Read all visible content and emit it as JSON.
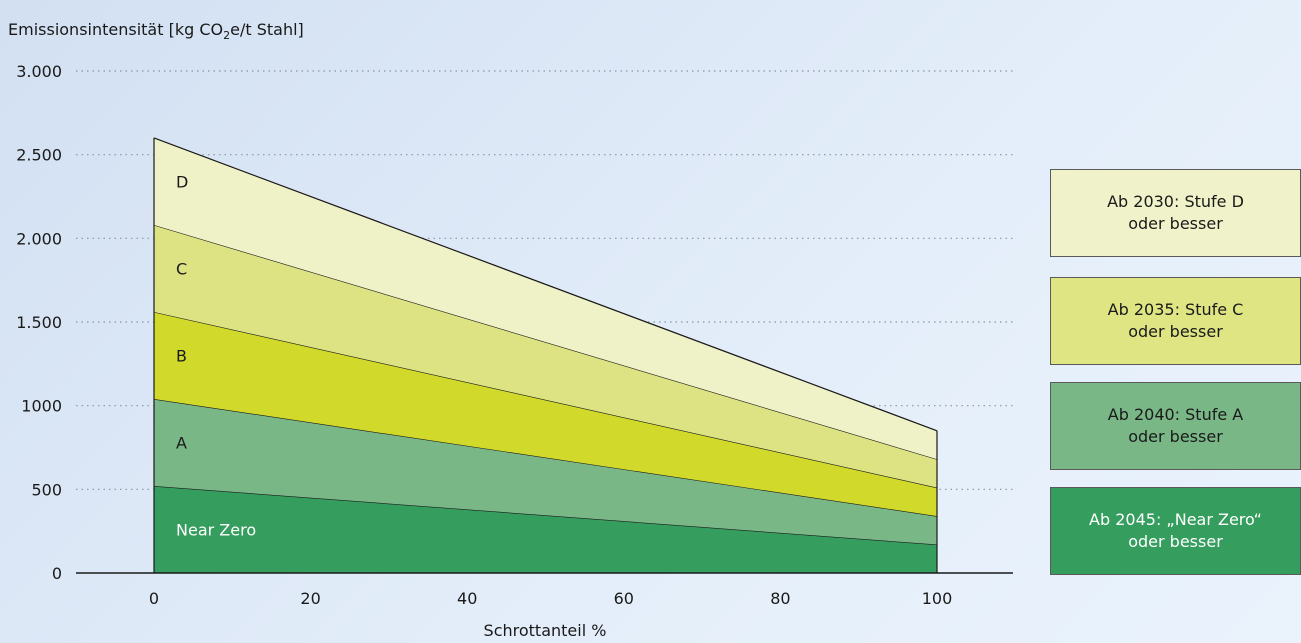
{
  "chart_data": {
    "type": "area",
    "title": "",
    "ylabel_prefix": "Emissionsintensität [kg CO",
    "ylabel_sub": "2",
    "ylabel_suffix": "e/t Stahl]",
    "xlabel": "Schrottanteil %",
    "xlim": [
      -10,
      110
    ],
    "ylim": [
      0,
      3000
    ],
    "x_ticks": [
      0,
      20,
      40,
      60,
      80,
      100
    ],
    "x_tick_labels": [
      "0",
      "20",
      "40",
      "60",
      "80",
      "100"
    ],
    "y_ticks": [
      0,
      500,
      1000,
      1500,
      2000,
      2500,
      3000
    ],
    "y_tick_labels": [
      "0",
      "500",
      "1000",
      "1.500",
      "2.000",
      "2.500",
      "3.000"
    ],
    "grid": "horizontal dotted",
    "x": [
      0,
      100
    ],
    "bands": [
      {
        "label": "Near Zero",
        "lower": [
          0,
          0
        ],
        "upper": [
          520,
          170
        ],
        "color": "#359e5e",
        "label_color": "#ffffff"
      },
      {
        "label": "A",
        "lower": [
          520,
          170
        ],
        "upper": [
          1040,
          340
        ],
        "color": "#7ab787",
        "label_color": "#1a1a1a"
      },
      {
        "label": "B",
        "lower": [
          1040,
          340
        ],
        "upper": [
          1560,
          510
        ],
        "color": "#d1d92b",
        "label_color": "#1a1a1a"
      },
      {
        "label": "C",
        "lower": [
          1560,
          510
        ],
        "upper": [
          2080,
          680
        ],
        "color": "#dde383",
        "label_color": "#1a1a1a"
      },
      {
        "label": "D",
        "lower": [
          2080,
          680
        ],
        "upper": [
          2600,
          850
        ],
        "color": "#eff2c7",
        "label_color": "#1a1a1a"
      }
    ]
  },
  "legend": [
    {
      "line1": "Ab 2030: Stufe D",
      "line2": "oder besser",
      "color": "#f0f3c9",
      "text_color": "#1a1a1a"
    },
    {
      "line1": "Ab 2035: Stufe C",
      "line2": "oder besser",
      "color": "#dfe583",
      "text_color": "#1a1a1a"
    },
    {
      "line1": "Ab 2040: Stufe A",
      "line2": "oder besser",
      "color": "#7ab787",
      "text_color": "#1a1a1a"
    },
    {
      "line1": "Ab 2045: „Near Zero“",
      "line2": "oder besser",
      "color": "#359e5e",
      "text_color": "#ffffff"
    }
  ]
}
